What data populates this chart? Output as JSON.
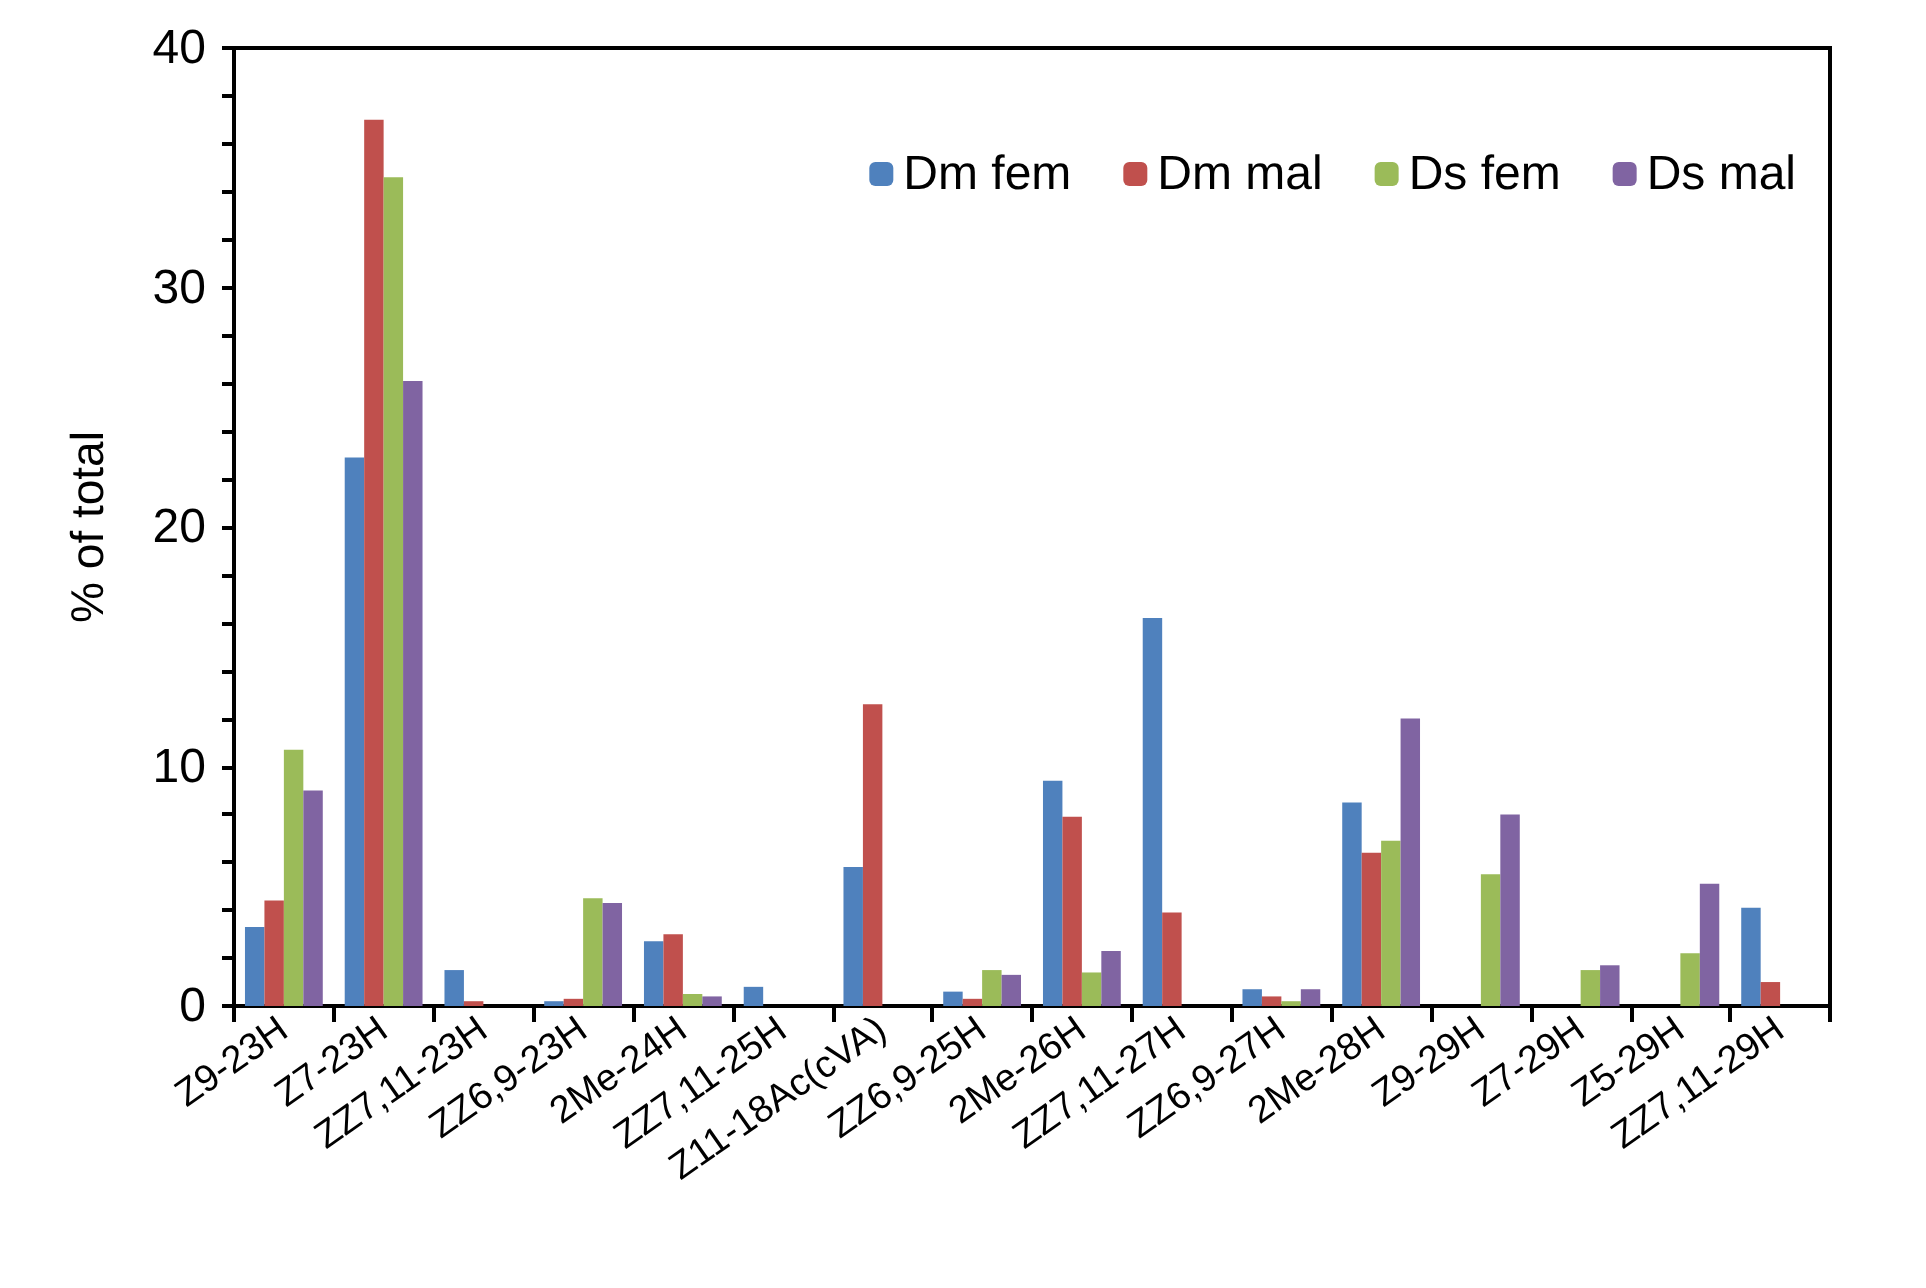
{
  "chart_data": {
    "type": "bar",
    "ylabel": "% of total",
    "categories": [
      "Z9-23H",
      "Z7-23H",
      "ZZ7,11-23H",
      "ZZ6,9-23H",
      "2Me-24H",
      "ZZ7,11-25H",
      "Z11-18Ac(cVA)",
      "ZZ6,9-25H",
      "2Me-26H",
      "ZZ7,11-27H",
      "ZZ6,9-27H",
      "2Me-28H",
      "Z9-29H",
      "Z7-29H",
      "Z5-29H",
      "ZZ7,11-29H"
    ],
    "series": [
      {
        "name": "Dm fem",
        "color": "#4f81bd",
        "values": [
          3.3,
          22.9,
          1.5,
          0.2,
          2.7,
          0.8,
          5.8,
          0.6,
          9.4,
          16.2,
          0.7,
          8.5,
          0,
          0,
          0,
          4.1
        ]
      },
      {
        "name": "Dm mal",
        "color": "#c0504d",
        "values": [
          4.4,
          37.0,
          0.2,
          0.3,
          3.0,
          0,
          12.6,
          0.3,
          7.9,
          3.9,
          0.4,
          6.4,
          0,
          0,
          0,
          1.0
        ]
      },
      {
        "name": "Ds fem",
        "color": "#9bbb59",
        "values": [
          10.7,
          34.6,
          0,
          4.5,
          0.5,
          0,
          0,
          1.5,
          1.4,
          0,
          0.2,
          6.9,
          5.5,
          1.5,
          2.2,
          0
        ]
      },
      {
        "name": "Ds mal",
        "color": "#8064a2",
        "values": [
          9.0,
          26.1,
          0,
          4.3,
          0.4,
          0,
          0,
          1.3,
          2.3,
          0,
          0.7,
          12.0,
          8.0,
          1.7,
          5.1,
          0
        ]
      }
    ],
    "ylim": [
      0,
      40
    ],
    "yticks": [
      0,
      {
        "value": 2,
        "label": null
      },
      {
        "value": 4,
        "label": null
      },
      {
        "value": 6,
        "label": null
      },
      {
        "value": 8,
        "label": null
      },
      10,
      {
        "value": 12,
        "label": null
      },
      {
        "value": 14,
        "label": null
      },
      {
        "value": 16,
        "label": null
      },
      {
        "value": 18,
        "label": null
      },
      20,
      {
        "value": 22,
        "label": null
      },
      {
        "value": 24,
        "label": null
      },
      {
        "value": 26,
        "label": null
      },
      {
        "value": 28,
        "label": null
      },
      30,
      {
        "value": 32,
        "label": null
      },
      {
        "value": 34,
        "label": null
      },
      {
        "value": 36,
        "label": null
      },
      {
        "value": 38,
        "label": null
      },
      40
    ],
    "grid": false,
    "legend": "top right"
  }
}
